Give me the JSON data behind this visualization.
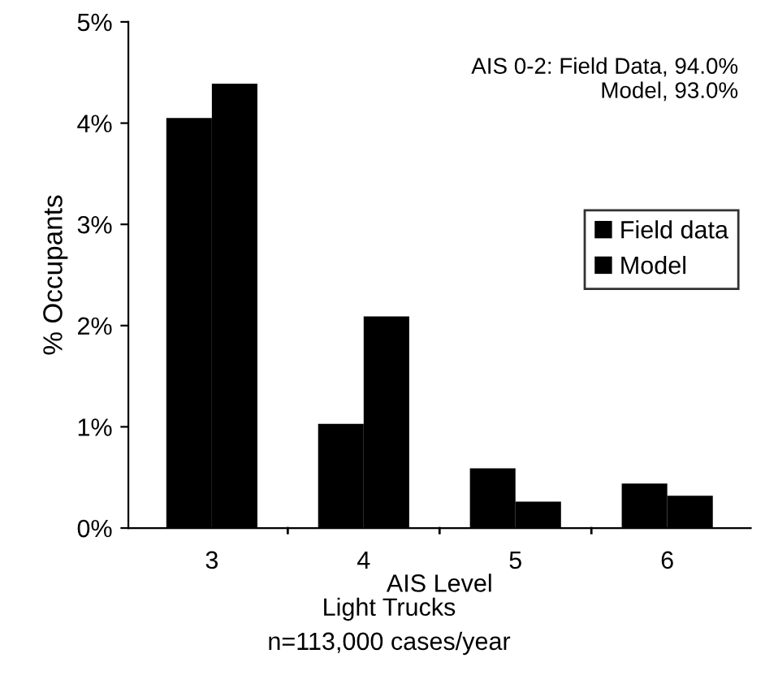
{
  "chart_data": {
    "type": "bar",
    "title": "Light Trucks",
    "subtitle": "n=113,000 cases/year",
    "xlabel": "AIS Level",
    "ylabel": "% Occupants",
    "annotations": [
      "AIS 0-2: Field Data, 94.0%\nModel, 93.0%"
    ],
    "categories": [
      "3",
      "4",
      "5",
      "6"
    ],
    "series": [
      {
        "name": "Field data",
        "color": "#000000",
        "values": [
          4.05,
          1.03,
          0.59,
          0.44
        ]
      },
      {
        "name": "Model",
        "color": "#000000",
        "values": [
          4.39,
          2.09,
          0.26,
          0.32
        ]
      }
    ],
    "ylim": [
      0,
      5
    ],
    "yticks": [
      {
        "value": 0,
        "label": "0%"
      },
      {
        "value": 1,
        "label": "1%"
      },
      {
        "value": 2,
        "label": "2%"
      },
      {
        "value": 3,
        "label": "3%"
      },
      {
        "value": 4,
        "label": "4%"
      },
      {
        "value": 5,
        "label": "5%"
      }
    ],
    "grid": false,
    "legend": "right"
  }
}
